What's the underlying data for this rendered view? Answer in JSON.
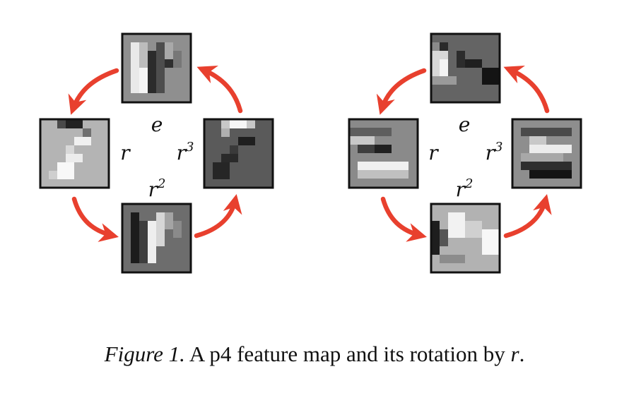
{
  "figure": {
    "panels": [
      {
        "id": "left",
        "labels": {
          "e": "e",
          "r": "r",
          "r2": "r",
          "r2_exp": "2",
          "r3": "r",
          "r3_exp": "3"
        },
        "patches": {
          "top": {
            "bg": "#8f8f8f"
          },
          "left": {
            "bg": "#b4b4b4"
          },
          "right": {
            "bg": "#5a5a5a"
          },
          "bottom": {
            "bg": "#6d6d6d"
          }
        }
      },
      {
        "id": "right",
        "labels": {
          "e": "e",
          "r": "r",
          "r2": "r",
          "r2_exp": "2",
          "r3": "r",
          "r3_exp": "3"
        },
        "patches": {
          "top": {
            "bg": "#646464"
          },
          "left": {
            "bg": "#8a8a8a"
          },
          "right": {
            "bg": "#8e8e8e"
          },
          "bottom": {
            "bg": "#b2b2b2"
          }
        }
      }
    ],
    "arrow_color": "#e8402e"
  },
  "caption": {
    "label": "Figure 1.",
    "text_before": " A p4 feature map and its rotation by ",
    "symbol": "r",
    "text_after": "."
  }
}
